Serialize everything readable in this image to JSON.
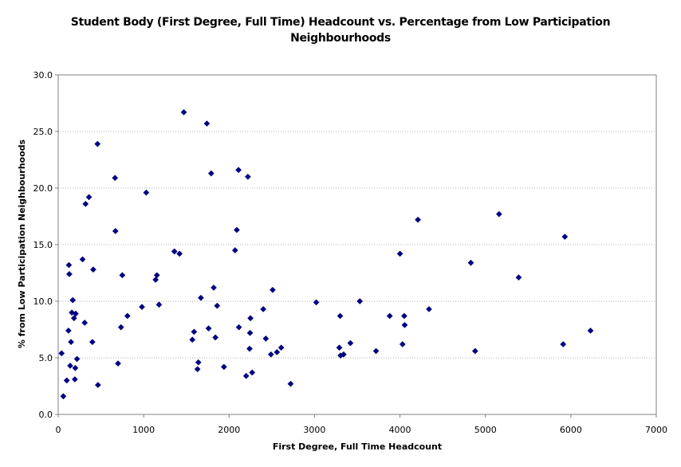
{
  "chart_data": {
    "type": "scatter",
    "title_lines": [
      "Student Body (First Degree, Full Time) Headcount vs. Percentage from Low Participation",
      "Neighbourhoods"
    ],
    "xlabel": "First Degree, Full Time Headcount",
    "ylabel": "% from Low Participation Neighbourhoods",
    "xlim": [
      0,
      7000
    ],
    "ylim": [
      0,
      30
    ],
    "x_ticks": [
      "0",
      "1000",
      "2000",
      "3000",
      "4000",
      "5000",
      "6000",
      "7000"
    ],
    "y_ticks": [
      "0.0",
      "5.0",
      "10.0",
      "15.0",
      "20.0",
      "25.0",
      "30.0"
    ],
    "grid": "horizontal dotted",
    "marker_color": "#000080",
    "points": [
      [
        40,
        5.4
      ],
      [
        60,
        1.6
      ],
      [
        100,
        3.0
      ],
      [
        120,
        7.4
      ],
      [
        125,
        13.2
      ],
      [
        130,
        12.4
      ],
      [
        140,
        4.3
      ],
      [
        150,
        6.4
      ],
      [
        160,
        9.0
      ],
      [
        170,
        10.1
      ],
      [
        185,
        8.5
      ],
      [
        195,
        3.1
      ],
      [
        200,
        4.1
      ],
      [
        205,
        8.9
      ],
      [
        220,
        4.9
      ],
      [
        285,
        13.7
      ],
      [
        310,
        8.1
      ],
      [
        320,
        18.6
      ],
      [
        360,
        19.2
      ],
      [
        400,
        6.4
      ],
      [
        410,
        12.8
      ],
      [
        460,
        23.9
      ],
      [
        465,
        2.6
      ],
      [
        665,
        20.9
      ],
      [
        670,
        16.2
      ],
      [
        700,
        4.5
      ],
      [
        735,
        7.7
      ],
      [
        750,
        12.3
      ],
      [
        810,
        8.7
      ],
      [
        980,
        9.5
      ],
      [
        1030,
        19.6
      ],
      [
        1140,
        11.9
      ],
      [
        1155,
        12.3
      ],
      [
        1180,
        9.7
      ],
      [
        1360,
        14.4
      ],
      [
        1420,
        14.2
      ],
      [
        1470,
        26.7
      ],
      [
        1570,
        6.6
      ],
      [
        1590,
        7.3
      ],
      [
        1630,
        4.0
      ],
      [
        1640,
        4.6
      ],
      [
        1670,
        10.3
      ],
      [
        1740,
        25.7
      ],
      [
        1760,
        7.6
      ],
      [
        1790,
        21.3
      ],
      [
        1820,
        11.2
      ],
      [
        1840,
        6.8
      ],
      [
        1860,
        9.6
      ],
      [
        1940,
        4.2
      ],
      [
        2070,
        14.5
      ],
      [
        2090,
        16.3
      ],
      [
        2110,
        21.6
      ],
      [
        2115,
        7.7
      ],
      [
        2200,
        3.4
      ],
      [
        2220,
        21.0
      ],
      [
        2240,
        5.8
      ],
      [
        2245,
        7.2
      ],
      [
        2250,
        8.5
      ],
      [
        2270,
        3.7
      ],
      [
        2400,
        9.3
      ],
      [
        2430,
        6.7
      ],
      [
        2490,
        5.3
      ],
      [
        2510,
        11.0
      ],
      [
        2560,
        5.5
      ],
      [
        2610,
        5.9
      ],
      [
        2720,
        2.7
      ],
      [
        3020,
        9.9
      ],
      [
        3290,
        5.9
      ],
      [
        3300,
        8.7
      ],
      [
        3305,
        5.2
      ],
      [
        3340,
        5.3
      ],
      [
        3420,
        6.3
      ],
      [
        3530,
        10.0
      ],
      [
        3720,
        5.6
      ],
      [
        3880,
        8.7
      ],
      [
        4000,
        14.2
      ],
      [
        4030,
        6.2
      ],
      [
        4050,
        8.7
      ],
      [
        4055,
        7.9
      ],
      [
        4210,
        17.2
      ],
      [
        4340,
        9.3
      ],
      [
        4830,
        13.4
      ],
      [
        4880,
        5.6
      ],
      [
        5160,
        17.7
      ],
      [
        5390,
        12.1
      ],
      [
        5910,
        6.2
      ],
      [
        5930,
        15.7
      ],
      [
        6230,
        7.4
      ]
    ]
  }
}
